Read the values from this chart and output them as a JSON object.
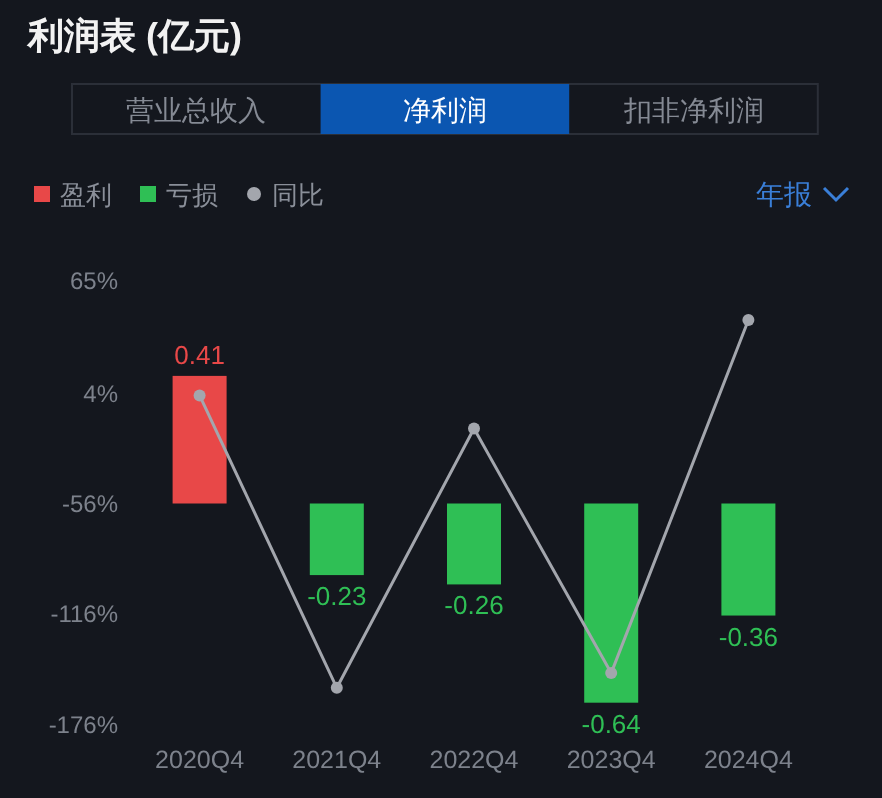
{
  "chart_data": {
    "type": "bar",
    "title": "利润表 (亿元)",
    "categories": [
      "2020Q4",
      "2021Q4",
      "2022Q4",
      "2023Q4",
      "2024Q4"
    ],
    "series": [
      {
        "name": "盈利",
        "axis": "y2",
        "color": "#e84848",
        "values": [
          0.41,
          null,
          null,
          null,
          null
        ],
        "value_labels": [
          "0.41",
          null,
          null,
          null,
          null
        ]
      },
      {
        "name": "亏损",
        "axis": "y2",
        "color": "#2fbf55",
        "values": [
          null,
          -0.23,
          -0.26,
          -0.64,
          -0.36
        ],
        "value_labels": [
          null,
          "-0.23",
          "-0.26",
          "-0.64",
          "-0.36"
        ]
      },
      {
        "name": "同比",
        "type": "line",
        "color": "#a3a6ad",
        "marker": "circle",
        "values": [
          3,
          -156,
          -15,
          -148,
          44
        ]
      }
    ],
    "ylim": [
      -176,
      65
    ],
    "yticks": [
      {
        "value": 65,
        "label": "65%"
      },
      {
        "value": 4,
        "label": "4%"
      },
      {
        "value": -56,
        "label": "-56%"
      },
      {
        "value": -116,
        "label": "-116%"
      },
      {
        "value": -176,
        "label": "-176%"
      }
    ],
    "legend": "top left",
    "annotations": [
      "营业总收入",
      "净利润",
      "扣非净利润",
      "年报"
    ]
  }
}
